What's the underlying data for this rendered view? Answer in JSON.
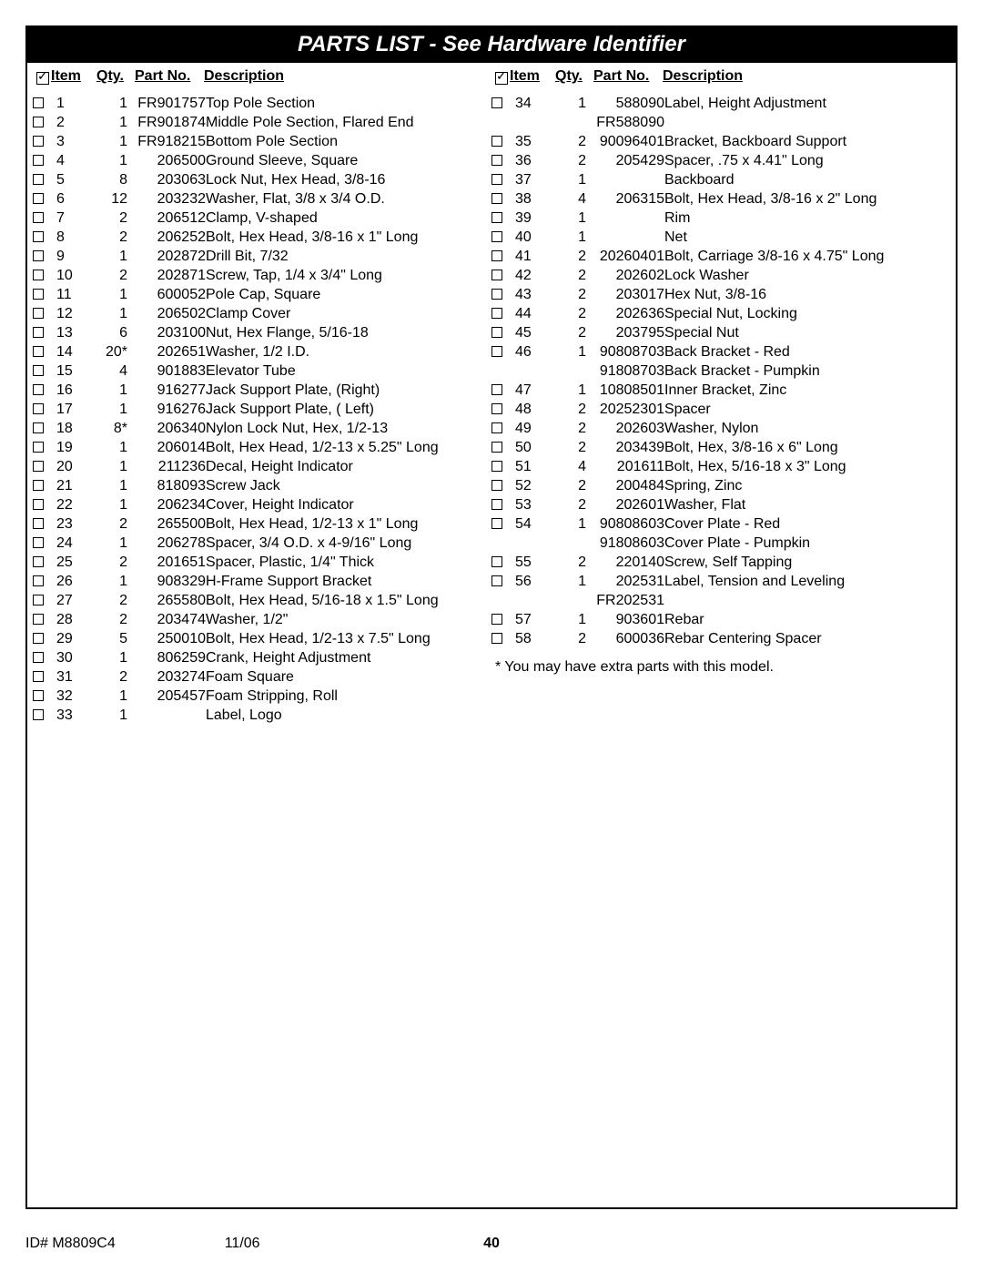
{
  "title": "PARTS LIST - See Hardware Identifier",
  "headers": {
    "item": "Item",
    "qty": "Qty.",
    "partNo": "Part No.",
    "description": "Description"
  },
  "columns": [
    [
      {
        "item": "1",
        "qty": "1",
        "pn": "FR901757",
        "desc": "Top Pole Section"
      },
      {
        "item": "2",
        "qty": "1",
        "pn": "FR901874",
        "desc": "Middle Pole Section, Flared End"
      },
      {
        "item": "3",
        "qty": "1",
        "pn": "FR918215",
        "desc": "Bottom Pole Section"
      },
      {
        "item": "4",
        "qty": "1",
        "pn": "206500",
        "desc": "Ground Sleeve, Square"
      },
      {
        "item": "5",
        "qty": "8",
        "pn": "203063",
        "desc": "Lock Nut, Hex Head, 3/8-16"
      },
      {
        "item": "6",
        "qty": "12",
        "pn": "203232",
        "desc": "Washer, Flat, 3/8 x 3/4 O.D."
      },
      {
        "item": "7",
        "qty": "2",
        "pn": "206512",
        "desc": "Clamp, V-shaped"
      },
      {
        "item": "8",
        "qty": "2",
        "pn": "206252",
        "desc": "Bolt, Hex Head, 3/8-16 x 1\" Long"
      },
      {
        "item": "9",
        "qty": "1",
        "pn": "202872",
        "desc": "Drill Bit, 7/32"
      },
      {
        "item": "10",
        "qty": "2",
        "pn": "202871",
        "desc": "Screw, Tap, 1/4 x 3/4\" Long"
      },
      {
        "item": "11",
        "qty": "1",
        "pn": "600052",
        "desc": "Pole Cap, Square"
      },
      {
        "item": "12",
        "qty": "1",
        "pn": "206502",
        "desc": "Clamp Cover"
      },
      {
        "item": "13",
        "qty": "6",
        "pn": "203100",
        "desc": "Nut, Hex Flange, 5/16-18"
      },
      {
        "item": "14",
        "qty": "20*",
        "pn": "202651",
        "desc": "Washer, 1/2 I.D."
      },
      {
        "item": "15",
        "qty": "4",
        "pn": "901883",
        "desc": "Elevator Tube"
      },
      {
        "item": "16",
        "qty": "1",
        "pn": "916277",
        "desc": "Jack Support Plate, (Right)"
      },
      {
        "item": "17",
        "qty": "1",
        "pn": "916276",
        "desc": "Jack Support Plate, ( Left)"
      },
      {
        "item": "18",
        "qty": "8*",
        "pn": "206340",
        "desc": "Nylon Lock Nut, Hex, 1/2-13"
      },
      {
        "item": "19",
        "qty": "1",
        "pn": "206014",
        "desc": "Bolt, Hex Head, 1/2-13 x 5.25\" Long"
      },
      {
        "item": "20",
        "qty": "1",
        "pn": "211236",
        "desc": "Decal, Height Indicator"
      },
      {
        "item": "21",
        "qty": "1",
        "pn": "818093",
        "desc": "Screw Jack"
      },
      {
        "item": "22",
        "qty": "1",
        "pn": "206234",
        "desc": "Cover, Height Indicator"
      },
      {
        "item": "23",
        "qty": "2",
        "pn": "265500",
        "desc": "Bolt, Hex Head, 1/2-13 x 1\" Long"
      },
      {
        "item": "24",
        "qty": "1",
        "pn": "206278",
        "desc": "Spacer, 3/4 O.D. x 4-9/16\" Long"
      },
      {
        "item": "25",
        "qty": "2",
        "pn": "201651",
        "desc": "Spacer, Plastic, 1/4\" Thick"
      },
      {
        "item": "26",
        "qty": "1",
        "pn": "908329",
        "desc": "H-Frame Support Bracket"
      },
      {
        "item": "27",
        "qty": "2",
        "pn": "265580",
        "desc": "Bolt, Hex Head, 5/16-18 x 1.5\" Long"
      },
      {
        "item": "28",
        "qty": "2",
        "pn": "203474",
        "desc": "Washer, 1/2\""
      },
      {
        "item": "29",
        "qty": "5",
        "pn": "250010",
        "desc": "Bolt, Hex Head, 1/2-13 x 7.5\" Long"
      },
      {
        "item": "30",
        "qty": "1",
        "pn": "806259",
        "desc": "Crank, Height Adjustment"
      },
      {
        "item": "31",
        "qty": "2",
        "pn": "203274",
        "desc": "Foam Square"
      },
      {
        "item": "32",
        "qty": "1",
        "pn": "205457",
        "desc": "Foam Stripping, Roll"
      },
      {
        "item": "33",
        "qty": "1",
        "pn": "",
        "desc": "Label, Logo"
      }
    ],
    [
      {
        "item": "34",
        "qty": "1",
        "pn": "588090",
        "desc": "Label, Height Adjustment",
        "subpn": "FR588090"
      },
      {
        "item": "35",
        "qty": "2",
        "pn": "90096401",
        "desc": "Bracket, Backboard Support"
      },
      {
        "item": "36",
        "qty": "2",
        "pn": "205429",
        "desc": "Spacer, .75 x 4.41\" Long"
      },
      {
        "item": "37",
        "qty": "1",
        "pn": "",
        "desc": "Backboard"
      },
      {
        "item": "38",
        "qty": "4",
        "pn": "206315",
        "desc": "Bolt, Hex Head, 3/8-16 x 2\" Long"
      },
      {
        "item": "39",
        "qty": "1",
        "pn": "",
        "desc": "Rim"
      },
      {
        "item": "40",
        "qty": "1",
        "pn": "",
        "desc": "Net"
      },
      {
        "item": "41",
        "qty": "2",
        "pn": "20260401",
        "desc": "Bolt, Carriage 3/8-16 x 4.75\" Long"
      },
      {
        "item": "42",
        "qty": "2",
        "pn": "202602",
        "desc": "Lock Washer"
      },
      {
        "item": "43",
        "qty": "2",
        "pn": "203017",
        "desc": "Hex Nut, 3/8-16"
      },
      {
        "item": "44",
        "qty": "2",
        "pn": "202636",
        "desc": "Special Nut, Locking"
      },
      {
        "item": "45",
        "qty": "2",
        "pn": "203795",
        "desc": "Special Nut"
      },
      {
        "item": "46",
        "qty": "1",
        "pn": "90808703",
        "desc": "Back Bracket - Red",
        "subpn": "91808703",
        "subdesc": "Back Bracket - Pumpkin"
      },
      {
        "item": "47",
        "qty": "1",
        "pn": "10808501",
        "desc": "Inner Bracket, Zinc"
      },
      {
        "item": "48",
        "qty": "2",
        "pn": "20252301",
        "desc": "Spacer"
      },
      {
        "item": "49",
        "qty": "2",
        "pn": "202603",
        "desc": "Washer, Nylon"
      },
      {
        "item": "50",
        "qty": "2",
        "pn": "203439",
        "desc": "Bolt, Hex, 3/8-16 x 6\" Long"
      },
      {
        "item": "51",
        "qty": "4",
        "pn": "201611",
        "desc": "Bolt, Hex, 5/16-18 x 3\" Long"
      },
      {
        "item": "52",
        "qty": "2",
        "pn": "200484",
        "desc": "Spring, Zinc"
      },
      {
        "item": "53",
        "qty": "2",
        "pn": "202601",
        "desc": "Washer, Flat"
      },
      {
        "item": "54",
        "qty": "1",
        "pn": "90808603",
        "desc": "Cover Plate - Red",
        "subpn": "91808603",
        "subdesc": "Cover Plate - Pumpkin"
      },
      {
        "item": "55",
        "qty": "2",
        "pn": "220140",
        "desc": "Screw, Self Tapping"
      },
      {
        "item": "56",
        "qty": "1",
        "pn": "202531",
        "desc": "Label, Tension and Leveling",
        "subpn": "FR202531"
      },
      {
        "item": "57",
        "qty": "1",
        "pn": "903601",
        "desc": "Rebar"
      },
      {
        "item": "58",
        "qty": "2",
        "pn": "600036",
        "desc": "Rebar Centering Spacer"
      }
    ]
  ],
  "footnote": "*  You may have extra parts with this model.",
  "footer": {
    "id": "ID#  M8809C4",
    "date": "11/06",
    "page": "40"
  }
}
